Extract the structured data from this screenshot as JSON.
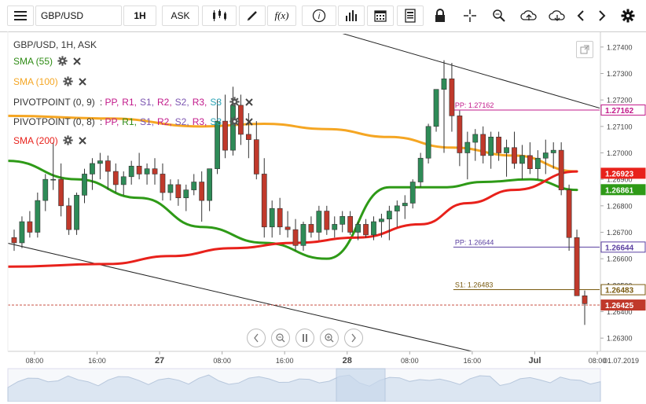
{
  "toolbar": {
    "symbol": "GBP/USD",
    "interval": "1H",
    "price_type": "ASK",
    "icons": [
      "menu-icon",
      "candles-icon",
      "draw-pen-icon",
      "function-fx-icon",
      "info-icon",
      "bar-volume-icon",
      "calendar-icon",
      "news-icon",
      "lock-icon",
      "crosshair-icon",
      "zoom-search-icon",
      "upload-cloud-icon",
      "download-cloud-icon",
      "chevron-left-icon",
      "chevron-right-icon",
      "gear-icon"
    ]
  },
  "legend": {
    "title": "GBP/USD, 1H, ASK",
    "indicators": [
      {
        "label": "SMA (55)",
        "color": "#2e8b14"
      },
      {
        "label": "SMA (100)",
        "color": "#f5a623"
      },
      {
        "label": "PIVOTPOINT (0, 9)",
        "color": "#333333",
        "levels": [
          "PP,",
          "R1,",
          "S1,",
          "R2,",
          "S2,",
          "R3,",
          "S3"
        ],
        "level_colors": [
          "#c2188a",
          "#c2188a",
          "#7b55b0",
          "#c2188a",
          "#7b55b0",
          "#c2188a",
          "#2aa3b5"
        ]
      },
      {
        "label": "PIVOTPOINT (0, 8)",
        "color": "#333333",
        "levels": [
          "PP,",
          "R1,",
          "S1,",
          "R2,",
          "S2,",
          "R3,",
          "S3"
        ],
        "level_colors": [
          "#c2188a",
          "#2e8b14",
          "#7b55b0",
          "#c2188a",
          "#7b55b0",
          "#c2188a",
          "#2aa3b5"
        ]
      },
      {
        "label": "SMA (200)",
        "color": "#e8211b"
      }
    ]
  },
  "pivot_labels": {
    "pp1": "PP: 1.27162",
    "pp2": "PP: 1.26644",
    "s1": "S1: 1.26483"
  },
  "colors": {
    "up": "#2e8b57",
    "down": "#c0392b",
    "sma55": "#2e9a17",
    "sma100": "#f5a623",
    "sma200": "#e8211b",
    "pivot": "#c2188a",
    "s1": "#8a6d1e"
  },
  "nav_buttons": [
    "scroll-left-icon",
    "zoom-out-icon",
    "pause-icon",
    "zoom-in-icon",
    "scroll-right-icon"
  ],
  "chart_data": {
    "type": "candlestick",
    "title": "GBP/USD, 1H, ASK",
    "ylim": [
      1.2625,
      1.2745
    ],
    "yticks": [
      "1.27400",
      "1.27300",
      "1.27200",
      "1.27100",
      "1.27000",
      "1.26900",
      "1.26800",
      "1.26700",
      "1.26600",
      "1.26500",
      "1.26400",
      "1.26300"
    ],
    "ytick_values": [
      1.274,
      1.273,
      1.272,
      1.271,
      1.27,
      1.269,
      1.268,
      1.267,
      1.266,
      1.265,
      1.264,
      1.263
    ],
    "xticks": [
      {
        "label": "08:00",
        "bold": false,
        "i": 1
      },
      {
        "label": "16:00",
        "bold": false,
        "i": 9
      },
      {
        "label": "27",
        "bold": true,
        "i": 17
      },
      {
        "label": "08:00",
        "bold": false,
        "i": 25
      },
      {
        "label": "16:00",
        "bold": false,
        "i": 33
      },
      {
        "label": "28",
        "bold": true,
        "i": 41
      },
      {
        "label": "08:00",
        "bold": false,
        "i": 49
      },
      {
        "label": "16:00",
        "bold": false,
        "i": 57
      },
      {
        "label": "Jul",
        "bold": true,
        "i": 65
      },
      {
        "label": "08:00",
        "bold": false,
        "i": 73
      }
    ],
    "last_date_label": "01.07.2019",
    "candles": [
      [
        1.2668,
        1.2671,
        1.2663,
        1.2666
      ],
      [
        1.2666,
        1.2676,
        1.2664,
        1.2674
      ],
      [
        1.2674,
        1.2678,
        1.2668,
        1.267
      ],
      [
        1.267,
        1.2685,
        1.2668,
        1.2682
      ],
      [
        1.2682,
        1.2692,
        1.2678,
        1.269
      ],
      [
        1.269,
        1.2704,
        1.2686,
        1.269
      ],
      [
        1.269,
        1.2696,
        1.2676,
        1.268
      ],
      [
        1.268,
        1.2683,
        1.2669,
        1.2671
      ],
      [
        1.2671,
        1.2685,
        1.2669,
        1.2684
      ],
      [
        1.2684,
        1.2694,
        1.2681,
        1.2692
      ],
      [
        1.2692,
        1.2698,
        1.2686,
        1.2696
      ],
      [
        1.2696,
        1.27,
        1.269,
        1.2697
      ],
      [
        1.2697,
        1.2699,
        1.2686,
        1.2693
      ],
      [
        1.2693,
        1.2696,
        1.2685,
        1.2688
      ],
      [
        1.2688,
        1.2693,
        1.2684,
        1.2691
      ],
      [
        1.2691,
        1.2697,
        1.2688,
        1.2695
      ],
      [
        1.2695,
        1.27,
        1.269,
        1.2692
      ],
      [
        1.2692,
        1.2696,
        1.2688,
        1.2694
      ],
      [
        1.2694,
        1.2698,
        1.2688,
        1.2692
      ],
      [
        1.2692,
        1.2696,
        1.2682,
        1.2685
      ],
      [
        1.2685,
        1.269,
        1.2682,
        1.2688
      ],
      [
        1.2688,
        1.269,
        1.268,
        1.2683
      ],
      [
        1.2683,
        1.2688,
        1.2678,
        1.2686
      ],
      [
        1.2686,
        1.2692,
        1.2684,
        1.2689
      ],
      [
        1.2689,
        1.2693,
        1.2674,
        1.2682
      ],
      [
        1.2682,
        1.2694,
        1.2678,
        1.2694
      ],
      [
        1.2694,
        1.272,
        1.2692,
        1.2712
      ],
      [
        1.2712,
        1.2722,
        1.2698,
        1.2701
      ],
      [
        1.2701,
        1.2725,
        1.2699,
        1.2718
      ],
      [
        1.2718,
        1.2722,
        1.2703,
        1.2707
      ],
      [
        1.2707,
        1.2715,
        1.2698,
        1.2705
      ],
      [
        1.2705,
        1.2712,
        1.269,
        1.2692
      ],
      [
        1.2692,
        1.2698,
        1.2668,
        1.2672
      ],
      [
        1.2672,
        1.2682,
        1.2668,
        1.2679
      ],
      [
        1.2679,
        1.2683,
        1.2669,
        1.2672
      ],
      [
        1.2672,
        1.2678,
        1.2668,
        1.2671
      ],
      [
        1.2671,
        1.2675,
        1.2663,
        1.2665
      ],
      [
        1.2665,
        1.2674,
        1.2663,
        1.2673
      ],
      [
        1.2673,
        1.2676,
        1.2668,
        1.267
      ],
      [
        1.267,
        1.268,
        1.2667,
        1.2678
      ],
      [
        1.2678,
        1.268,
        1.2669,
        1.2671
      ],
      [
        1.2671,
        1.2676,
        1.2668,
        1.2673
      ],
      [
        1.2673,
        1.2678,
        1.267,
        1.2676
      ],
      [
        1.2676,
        1.2678,
        1.2669,
        1.267
      ],
      [
        1.267,
        1.2674,
        1.2667,
        1.2673
      ],
      [
        1.2673,
        1.2675,
        1.2668,
        1.2669
      ],
      [
        1.2669,
        1.2676,
        1.2667,
        1.2674
      ],
      [
        1.2674,
        1.2677,
        1.2668,
        1.2675
      ],
      [
        1.2675,
        1.268,
        1.2667,
        1.2678
      ],
      [
        1.2678,
        1.2682,
        1.2672,
        1.268
      ],
      [
        1.268,
        1.2684,
        1.2675,
        1.2681
      ],
      [
        1.2681,
        1.269,
        1.2679,
        1.2689
      ],
      [
        1.2689,
        1.27,
        1.2687,
        1.2698
      ],
      [
        1.2698,
        1.2711,
        1.2696,
        1.271
      ],
      [
        1.271,
        1.2724,
        1.2708,
        1.2724
      ],
      [
        1.2724,
        1.2735,
        1.27,
        1.2728
      ],
      [
        1.2728,
        1.2734,
        1.2708,
        1.2714
      ],
      [
        1.2714,
        1.2716,
        1.2695,
        1.27
      ],
      [
        1.27,
        1.2708,
        1.269,
        1.2704
      ],
      [
        1.2704,
        1.2709,
        1.2697,
        1.2707
      ],
      [
        1.2707,
        1.271,
        1.2696,
        1.2699
      ],
      [
        1.2699,
        1.2708,
        1.2694,
        1.2706
      ],
      [
        1.2706,
        1.2708,
        1.2697,
        1.27
      ],
      [
        1.27,
        1.2705,
        1.2691,
        1.2702
      ],
      [
        1.2702,
        1.2708,
        1.2694,
        1.2696
      ],
      [
        1.2696,
        1.2703,
        1.269,
        1.2699
      ],
      [
        1.2699,
        1.2704,
        1.2692,
        1.2694
      ],
      [
        1.2694,
        1.2701,
        1.269,
        1.2698
      ],
      [
        1.2698,
        1.2705,
        1.2692,
        1.27
      ],
      [
        1.27,
        1.2704,
        1.2694,
        1.2701
      ],
      [
        1.2701,
        1.2704,
        1.2684,
        1.2686
      ],
      [
        1.2686,
        1.2688,
        1.2663,
        1.2668
      ],
      [
        1.2668,
        1.2671,
        1.2646,
        1.2646
      ],
      [
        1.2646,
        1.2648,
        1.2635,
        1.2643
      ]
    ],
    "series": [
      {
        "name": "SMA (55)",
        "key": "sma55",
        "values": [
          [
            0,
            1.2697
          ],
          [
            8,
            1.269
          ],
          [
            16,
            1.2683
          ],
          [
            24,
            1.2672
          ],
          [
            32,
            1.2666
          ],
          [
            40,
            1.266
          ],
          [
            48,
            1.2687
          ],
          [
            55,
            1.2687
          ],
          [
            60,
            1.2689
          ],
          [
            66,
            1.269
          ],
          [
            72,
            1.2686
          ]
        ]
      },
      {
        "name": "SMA (100)",
        "key": "sma100",
        "values": [
          [
            0,
            1.2714
          ],
          [
            12,
            1.2713
          ],
          [
            24,
            1.271
          ],
          [
            32,
            1.2711
          ],
          [
            40,
            1.2709
          ],
          [
            48,
            1.2706
          ],
          [
            56,
            1.2702
          ],
          [
            64,
            1.2699
          ],
          [
            72,
            1.2693
          ]
        ]
      },
      {
        "name": "SMA (200)",
        "key": "sma200",
        "values": [
          [
            0,
            1.2657
          ],
          [
            12,
            1.2658
          ],
          [
            20,
            1.2661
          ],
          [
            28,
            1.2664
          ],
          [
            36,
            1.2666
          ],
          [
            44,
            1.2668
          ],
          [
            52,
            1.2673
          ],
          [
            58,
            1.2681
          ],
          [
            64,
            1.2686
          ],
          [
            72,
            1.2693
          ]
        ]
      }
    ],
    "channel_lines": [
      {
        "from": [
          0,
          1.2782
        ],
        "to": [
          74,
          1.2716
        ]
      },
      {
        "from": [
          0,
          1.2666
        ],
        "to": [
          74,
          1.2613
        ]
      }
    ],
    "pivot_levels": [
      {
        "label": "PP: 1.27162",
        "value": 1.27162,
        "start_i": 57
      },
      {
        "label": "PP: 1.26644",
        "value": 1.26644,
        "start_i": 57
      },
      {
        "label": "S1: 1.26483",
        "value": 1.26483,
        "start_i": 57
      }
    ],
    "current_price": 1.26425,
    "price_tags": [
      {
        "label": "1.27162",
        "value": 1.27162,
        "bg": "#ffffff",
        "fg": "#c2188a",
        "border": "#c2188a"
      },
      {
        "label": "1.26923",
        "value": 1.26923,
        "bg": "#e8211b",
        "fg": "#ffffff",
        "border": "#e8211b"
      },
      {
        "label": "1.26861",
        "value": 1.26861,
        "bg": "#2e9a17",
        "fg": "#ffffff",
        "border": "#2e9a17"
      },
      {
        "label": "1.26644",
        "value": 1.26644,
        "bg": "#ffffff",
        "fg": "#5a3fa0",
        "border": "#5a3fa0"
      },
      {
        "label": "1.26483",
        "value": 1.26483,
        "bg": "#ffffff",
        "fg": "#7a5b10",
        "border": "#7a5b10"
      },
      {
        "label": "1.26425",
        "value": 1.26425,
        "bg": "#c0392b",
        "fg": "#ffffff",
        "border": "#c0392b"
      }
    ]
  }
}
